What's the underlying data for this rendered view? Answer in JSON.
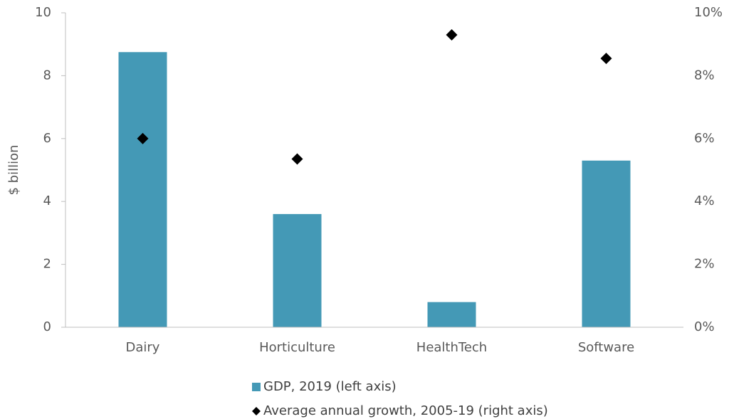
{
  "chart_data": {
    "type": "bar",
    "y_label": "$ billion",
    "categories": [
      "Dairy",
      "Horticulture",
      "HealthTech",
      "Software"
    ],
    "series": [
      {
        "name": "GDP, 2019 (left axis)",
        "type": "bar",
        "color": "#4499b6",
        "values": [
          8.75,
          3.6,
          0.8,
          5.3
        ]
      },
      {
        "name": "Average annual growth, 2005-19 (right axis)",
        "type": "scatter",
        "axis": "y2",
        "color": "#000000",
        "values": [
          6.0,
          5.35,
          9.3,
          8.55
        ]
      }
    ],
    "ylim": [
      0,
      10
    ],
    "yticks": [
      0,
      2,
      4,
      6,
      8,
      10
    ],
    "y2lim": [
      0,
      10
    ],
    "y2ticks": [
      {
        "value": 0,
        "label": "0%"
      },
      {
        "value": 2,
        "label": "2%"
      },
      {
        "value": 4,
        "label": "4%"
      },
      {
        "value": 6,
        "label": "6%"
      },
      {
        "value": 8,
        "label": "8%"
      },
      {
        "value": 10,
        "label": "10%"
      }
    ],
    "grid": false
  }
}
